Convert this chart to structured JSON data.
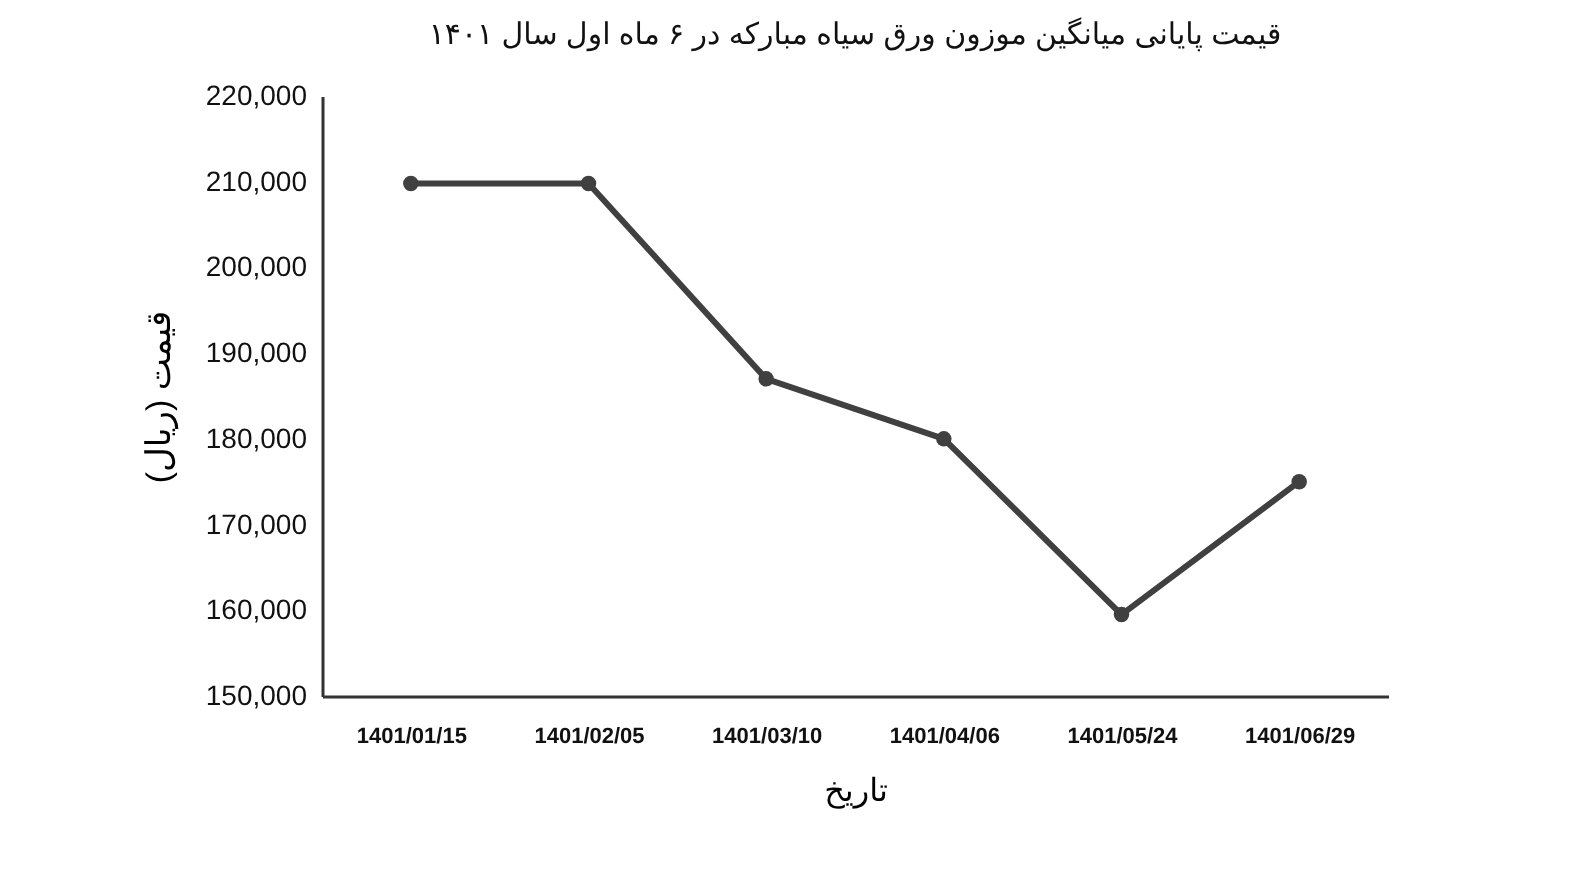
{
  "chart_data": {
    "type": "line",
    "title": "قیمت پایانی میانگین موزون ورق سیاه مبارکه در ۶ ماه اول سال ۱۴۰۱",
    "xlabel": "تاریخ",
    "ylabel": "قیمت (ریال)",
    "categories": [
      "1401/01/15",
      "1401/02/05",
      "1401/03/10",
      "1401/04/06",
      "1401/05/24",
      "1401/06/29"
    ],
    "series": [
      {
        "color": "#404040",
        "values": [
          209800,
          209800,
          187000,
          180000,
          159500,
          175000
        ]
      }
    ],
    "ylim": [
      150000,
      220000
    ],
    "yticks": [
      {
        "value": 150000,
        "label": "150,000"
      },
      {
        "value": 160000,
        "label": "160,000"
      },
      {
        "value": 170000,
        "label": "170,000"
      },
      {
        "value": 180000,
        "label": "180,000"
      },
      {
        "value": 190000,
        "label": "190,000"
      },
      {
        "value": 200000,
        "label": "200,000"
      },
      {
        "value": 210000,
        "label": "210,000"
      },
      {
        "value": 220000,
        "label": "220,000"
      }
    ],
    "grid": false,
    "legend": false,
    "marker": "circle",
    "line_style": "solid"
  }
}
